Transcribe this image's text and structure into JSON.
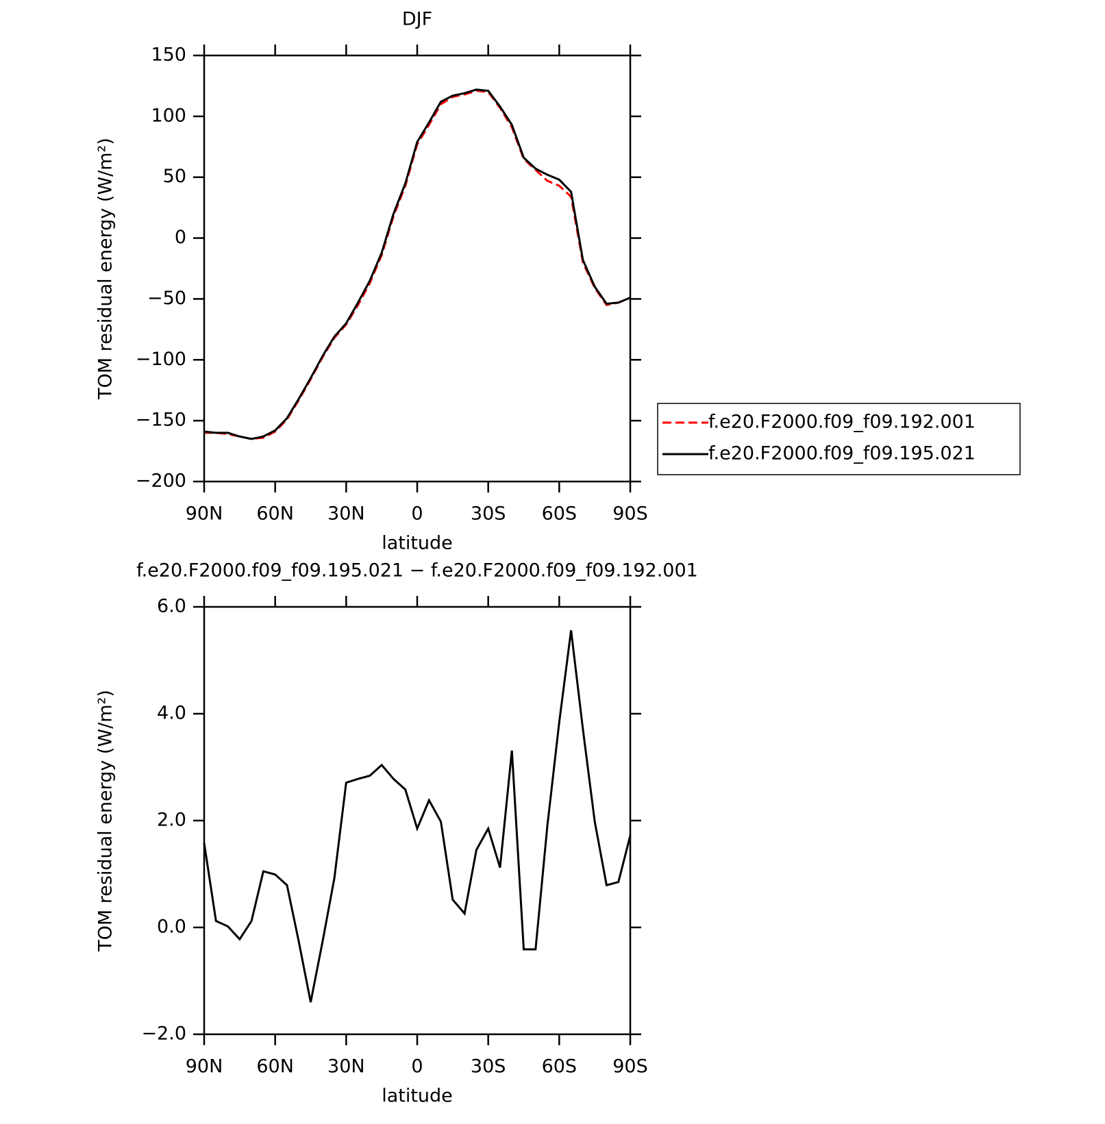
{
  "chart_data": [
    {
      "type": "line",
      "title": "DJF",
      "xlabel": "latitude",
      "ylabel": "TOM residual energy (W/m²)",
      "x": [
        90,
        85,
        80,
        75,
        70,
        65,
        60,
        55,
        50,
        45,
        40,
        35,
        30,
        25,
        20,
        15,
        10,
        5,
        0,
        -5,
        -10,
        -15,
        -20,
        -25,
        -30,
        -35,
        -40,
        -45,
        -50,
        -55,
        -60,
        -65,
        -70,
        -75,
        -80,
        -85,
        -90
      ],
      "xlim": [
        90,
        -90
      ],
      "xticks": [
        {
          "value": 90,
          "label": "90N"
        },
        {
          "value": 60,
          "label": "60N"
        },
        {
          "value": 30,
          "label": "30N"
        },
        0,
        {
          "value": -30,
          "label": "30S"
        },
        {
          "value": -60,
          "label": "60S"
        },
        {
          "value": -90,
          "label": "90S"
        }
      ],
      "ylim": [
        -200,
        150
      ],
      "yticks": [
        {
          "value": -200,
          "label": "−200"
        },
        {
          "value": -150,
          "label": "−150"
        },
        {
          "value": -100,
          "label": "−100"
        },
        {
          "value": -50,
          "label": "−50"
        },
        0,
        50,
        100,
        150
      ],
      "legend": "right",
      "series": [
        {
          "name": "f.e20.F2000.f09_f09.192.001",
          "color": "#ff0000",
          "line_style": "dashed",
          "values": [
            -160,
            -160,
            -161,
            -163,
            -165,
            -164,
            -159,
            -149,
            -133,
            -116,
            -98,
            -82,
            -71,
            -55,
            -37,
            -14,
            18,
            43,
            77,
            93,
            110,
            116,
            118,
            121,
            120,
            107,
            91,
            65,
            56,
            47,
            43,
            34,
            -20,
            -41,
            -55,
            -53,
            -49
          ]
        },
        {
          "name": "f.e20.F2000.f09_f09.195.021",
          "color": "#000000",
          "line_style": "solid",
          "values": [
            -159,
            -160,
            -160,
            -163,
            -165,
            -163,
            -158,
            -148,
            -132,
            -115,
            -97,
            -81,
            -70,
            -53,
            -35,
            -12,
            20,
            45,
            79,
            95,
            112,
            117,
            119,
            122,
            121,
            108,
            93,
            66,
            57,
            52,
            48,
            38,
            -18,
            -40,
            -54,
            -53,
            -49
          ]
        }
      ]
    },
    {
      "type": "line",
      "title": "f.e20.F2000.f09_f09.195.021 − f.e20.F2000.f09_f09.192.001",
      "xlabel": "latitude",
      "ylabel": "TOM residual energy (W/m²)",
      "x": [
        90,
        85,
        80,
        75,
        70,
        65,
        60,
        55,
        50,
        45,
        40,
        35,
        30,
        25,
        20,
        15,
        10,
        5,
        0,
        -5,
        -10,
        -15,
        -20,
        -25,
        -30,
        -35,
        -40,
        -45,
        -50,
        -55,
        -60,
        -65,
        -70,
        -75,
        -80,
        -85,
        -90
      ],
      "xlim": [
        90,
        -90
      ],
      "xticks": [
        {
          "value": 90,
          "label": "90N"
        },
        {
          "value": 60,
          "label": "60N"
        },
        {
          "value": 30,
          "label": "30N"
        },
        0,
        {
          "value": -30,
          "label": "30S"
        },
        {
          "value": -60,
          "label": "60S"
        },
        {
          "value": -90,
          "label": "90S"
        }
      ],
      "ylim": [
        -2,
        6
      ],
      "yticks": [
        {
          "value": -2,
          "label": "−2.0"
        },
        {
          "value": 0,
          "label": "0.0"
        },
        {
          "value": 2,
          "label": "2.0"
        },
        {
          "value": 4,
          "label": "4.0"
        },
        {
          "value": 6,
          "label": "6.0"
        }
      ],
      "series": [
        {
          "color": "#000000",
          "line_style": "solid",
          "values": [
            1.58,
            0.12,
            0.02,
            -0.22,
            0.12,
            1.05,
            0.99,
            0.79,
            -0.27,
            -1.4,
            -0.27,
            0.92,
            2.71,
            2.78,
            2.84,
            3.04,
            2.78,
            2.58,
            1.85,
            2.38,
            1.98,
            0.52,
            0.26,
            1.45,
            1.85,
            1.12,
            3.31,
            -0.41,
            -0.41,
            1.91,
            3.84,
            5.56,
            3.71,
            1.98,
            0.79,
            0.85,
            1.72
          ]
        }
      ]
    }
  ]
}
